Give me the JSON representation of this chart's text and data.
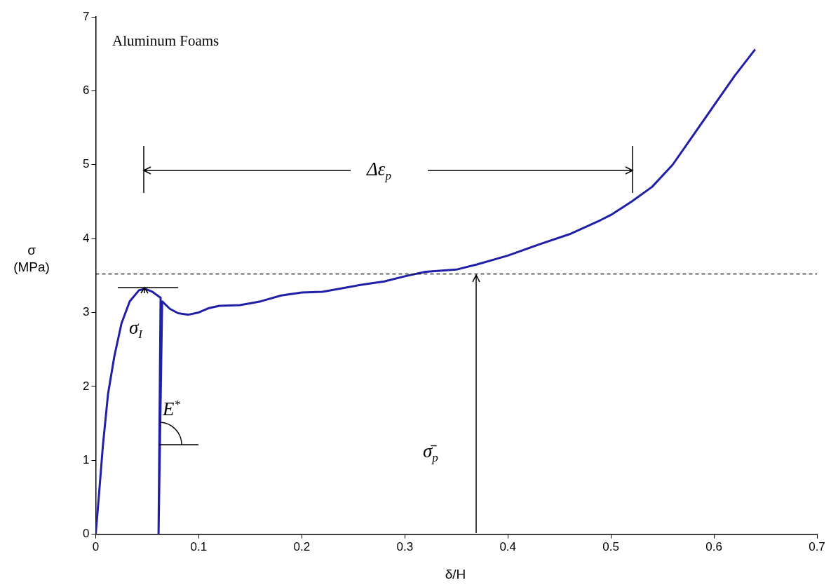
{
  "chart_data": {
    "type": "line",
    "title": "Aluminum Foams",
    "xlabel": "δ/H",
    "ylabel": "σ (MPa)",
    "xlim": [
      0,
      0.7
    ],
    "xticks": [
      0,
      0.1,
      0.2,
      0.3,
      0.4,
      0.5,
      0.6,
      0.7
    ],
    "ylim": [
      0,
      7
    ],
    "yticks": [
      0,
      1,
      2,
      3,
      4,
      5,
      6,
      7
    ],
    "grid": false,
    "legend": false,
    "marker": "none",
    "line_style": "solid",
    "series": [
      {
        "color": "#1f1fa8",
        "x": [
          0,
          0.003,
          0.007,
          0.012,
          0.018,
          0.025,
          0.033,
          0.042,
          0.048,
          0.055,
          0.063,
          0.061,
          0.0645,
          0.072,
          0.08,
          0.09,
          0.1,
          0.11,
          0.12,
          0.14,
          0.16,
          0.18,
          0.2,
          0.22,
          0.24,
          0.26,
          0.28,
          0.3,
          0.32,
          0.35,
          0.37,
          0.4,
          0.43,
          0.46,
          0.49,
          0.5,
          0.52,
          0.54,
          0.56,
          0.58,
          0.6,
          0.62,
          0.64
        ],
        "values": [
          0,
          0.5,
          1.2,
          1.9,
          2.4,
          2.85,
          3.15,
          3.3,
          3.32,
          3.28,
          3.2,
          0,
          3.15,
          3.05,
          2.99,
          2.97,
          3.0,
          3.06,
          3.09,
          3.1,
          3.15,
          3.23,
          3.27,
          3.28,
          3.33,
          3.38,
          3.42,
          3.49,
          3.55,
          3.58,
          3.65,
          3.77,
          3.92,
          4.06,
          4.25,
          4.32,
          4.5,
          4.7,
          5.0,
          5.4,
          5.8,
          6.2,
          6.56
        ]
      }
    ],
    "ref_lines": [
      {
        "axis": "y",
        "value": 3.52,
        "color": "#000000",
        "line_style": "dashed"
      }
    ],
    "annotations": [
      "Δε$_{p}$",
      "σ$_{I}$",
      "E$^{*}$",
      "σ̄$_{p}$"
    ]
  }
}
